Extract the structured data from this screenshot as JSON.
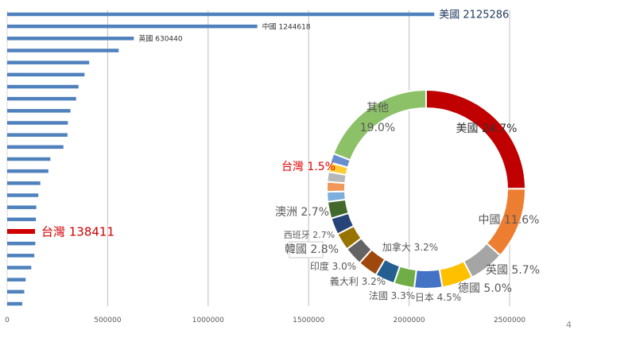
{
  "chart_data": [
    {
      "type": "bar",
      "orientation": "horizontal",
      "xlim": [
        0,
        2500000
      ],
      "x_ticks": [
        "0",
        "500000",
        "1000000",
        "1500000",
        "2000000",
        "2500000"
      ],
      "grid": true,
      "bar_color": "#4f81bd",
      "highlight_color": "#d00000",
      "bars": [
        {
          "value": 2125286,
          "label": "美國 2125286"
        },
        {
          "value": 1244618,
          "label": "中國 1244618"
        },
        {
          "value": 630440,
          "label": "英國 630440"
        },
        {
          "value": 555000,
          "label": ""
        },
        {
          "value": 408000,
          "label": ""
        },
        {
          "value": 385000,
          "label": ""
        },
        {
          "value": 355000,
          "label": ""
        },
        {
          "value": 343000,
          "label": ""
        },
        {
          "value": 315000,
          "label": ""
        },
        {
          "value": 302000,
          "label": ""
        },
        {
          "value": 300000,
          "label": ""
        },
        {
          "value": 280000,
          "label": ""
        },
        {
          "value": 215000,
          "label": ""
        },
        {
          "value": 205000,
          "label": ""
        },
        {
          "value": 165000,
          "label": ""
        },
        {
          "value": 155000,
          "label": ""
        },
        {
          "value": 145000,
          "label": ""
        },
        {
          "value": 143000,
          "label": ""
        },
        {
          "value": 138411,
          "label": "台灣 138411",
          "highlight": true
        },
        {
          "value": 140000,
          "label": ""
        },
        {
          "value": 135000,
          "label": ""
        },
        {
          "value": 120000,
          "label": ""
        },
        {
          "value": 92000,
          "label": ""
        },
        {
          "value": 85000,
          "label": ""
        },
        {
          "value": 75000,
          "label": ""
        }
      ]
    },
    {
      "type": "pie",
      "style": "donut",
      "slices": [
        {
          "label": "美國 24.7%",
          "value": 24.7,
          "color": "#c00000",
          "label_color": "#333333"
        },
        {
          "label": "中國 11.6%",
          "value": 11.6,
          "color": "#ed7d31",
          "label_color": "#595959"
        },
        {
          "label": "英國 5.7%",
          "value": 5.7,
          "color": "#a5a5a5",
          "label_color": "#595959"
        },
        {
          "label": "德國 5.0%",
          "value": 5.0,
          "color": "#ffc000",
          "label_color": "#595959"
        },
        {
          "label": "日本 4.5%",
          "value": 4.5,
          "color": "#4472c4",
          "label_color": "#595959"
        },
        {
          "label": "法國 3.3%",
          "value": 3.3,
          "color": "#70ad47",
          "label_color": "#595959"
        },
        {
          "label": "義大利 3.2%",
          "value": 3.2,
          "color": "#255e91",
          "label_color": "#595959"
        },
        {
          "label": "加拿大 3.2%",
          "value": 3.2,
          "color": "#9e480e",
          "label_color": "#595959"
        },
        {
          "label": "印度 3.0%",
          "value": 3.0,
          "color": "#636363",
          "label_color": "#595959"
        },
        {
          "label": "韓國 2.8%",
          "value": 2.8,
          "color": "#997300",
          "label_color": "#595959"
        },
        {
          "label": "西班牙 2.7%",
          "value": 2.7,
          "color": "#264478",
          "label_color": "#595959"
        },
        {
          "label": "澳洲 2.7%",
          "value": 2.7,
          "color": "#43682b",
          "label_color": "#595959"
        },
        {
          "label": "",
          "value": 1.6,
          "color": "#7cafdd",
          "label_color": "#595959"
        },
        {
          "label": "",
          "value": 1.6,
          "color": "#f1975a",
          "label_color": "#595959"
        },
        {
          "label": "",
          "value": 1.6,
          "color": "#b7b7b7",
          "label_color": "#595959"
        },
        {
          "label": "",
          "value": 1.5,
          "color": "#ffcd33",
          "label_color": "#595959"
        },
        {
          "label": "台灣 1.5%",
          "value": 1.5,
          "color": "#698ed0",
          "label_color": "#e00000"
        },
        {
          "label": "其他 19.0%",
          "value": 19.0,
          "color": "#8cc168",
          "label_color": "#595959"
        }
      ]
    }
  ],
  "page_number": "4"
}
